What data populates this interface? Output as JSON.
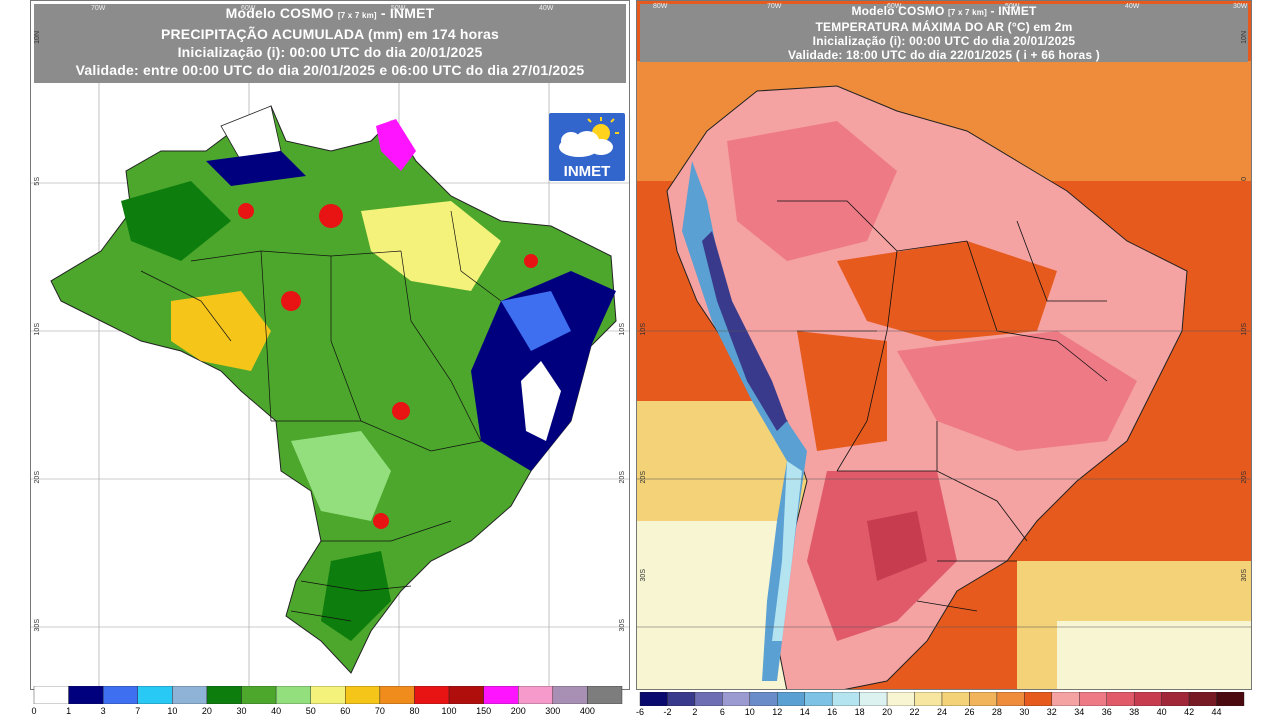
{
  "left_panel": {
    "title_line1": "Modelo COSMO",
    "title_resolution": "[7 x 7 km]",
    "title_line1_suffix": "- INMET",
    "title_line2": "PRECIPITAÇÃO ACUMULADA (mm) em 174 horas",
    "title_line3": "Inicialização (i): 00:00 UTC do dia 20/01/2025",
    "title_line4": "Validade: entre 00:00 UTC do dia 20/01/2025 e 06:00 UTC do dia 27/01/2025",
    "logo_text": "INMET",
    "lon_ticks": [
      "70W",
      "60W",
      "50W",
      "40W"
    ],
    "lat_ticks_left": [
      "10N",
      "5S",
      "10S",
      "20S",
      "30S"
    ],
    "lat_ticks_right": [
      "10S",
      "20S",
      "30S"
    ],
    "colorbar_labels": [
      "0",
      "1",
      "3",
      "7",
      "10",
      "20",
      "30",
      "40",
      "50",
      "60",
      "70",
      "80",
      "100",
      "150",
      "200",
      "300",
      "400"
    ],
    "colorbar_colors": [
      "#ffffff",
      "#00007f",
      "#3e6ff0",
      "#29c9f5",
      "#8fb3d6",
      "#0d7d0d",
      "#4ca72c",
      "#93df7e",
      "#f4f27a",
      "#f6c51a",
      "#f08c1c",
      "#e81414",
      "#b00d0d",
      "#ff14ff",
      "#f59acb",
      "#a890b4",
      "#7d7d7d"
    ]
  },
  "right_panel": {
    "title_line1": "Modelo COSMO",
    "title_resolution": "[7 x 7 km]",
    "title_line1_suffix": "- INMET",
    "title_line2": "TEMPERATURA MÁXIMA DO AR (°C) em 2m",
    "title_line3": "Inicialização (i): 00:00 UTC do dia 20/01/2025",
    "title_line4": "Validade: 18:00 UTC do dia 22/01/2025 ( i + 66 horas )",
    "lon_ticks": [
      "80W",
      "70W",
      "60W",
      "50W",
      "40W",
      "30W"
    ],
    "lat_ticks_left": [
      "10S",
      "20S",
      "30S"
    ],
    "lat_ticks_right": [
      "10N",
      "0",
      "10S",
      "20S",
      "30S"
    ],
    "colorbar_labels": [
      "-6",
      "-2",
      "2",
      "6",
      "10",
      "12",
      "14",
      "16",
      "18",
      "20",
      "22",
      "24",
      "26",
      "28",
      "30",
      "32",
      "34",
      "36",
      "38",
      "40",
      "42",
      "44"
    ],
    "colorbar_colors": [
      "#0a0a6e",
      "#3a3a8c",
      "#6e6eb4",
      "#9b9bd2",
      "#6a8cc8",
      "#5aa0d2",
      "#7ec3e6",
      "#b4e4f0",
      "#dcf2f0",
      "#f8f6d2",
      "#f6e6a0",
      "#f4d278",
      "#f2b45a",
      "#ee8c3c",
      "#e65a1e",
      "#f4a2a2",
      "#ee7a86",
      "#e05a6a",
      "#c83c50",
      "#a02838",
      "#781a24",
      "#4a0a10"
    ]
  }
}
